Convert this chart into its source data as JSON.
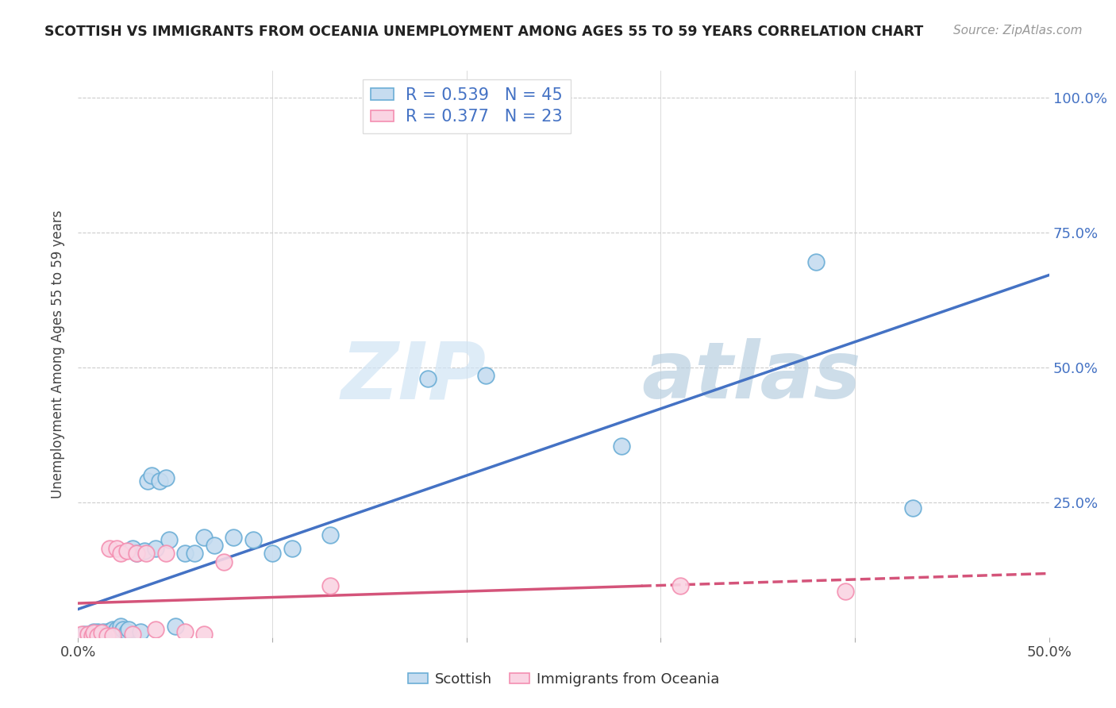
{
  "title": "SCOTTISH VS IMMIGRANTS FROM OCEANIA UNEMPLOYMENT AMONG AGES 55 TO 59 YEARS CORRELATION CHART",
  "source": "Source: ZipAtlas.com",
  "ylabel": "Unemployment Among Ages 55 to 59 years",
  "xlim": [
    0.0,
    0.5
  ],
  "ylim": [
    0.0,
    1.05
  ],
  "xticks": [
    0.0,
    0.1,
    0.2,
    0.3,
    0.4,
    0.5
  ],
  "xticklabels": [
    "0.0%",
    "",
    "",
    "",
    "",
    "50.0%"
  ],
  "ytick_positions": [
    0.0,
    0.25,
    0.5,
    0.75,
    1.0
  ],
  "yticklabels": [
    "",
    "25.0%",
    "50.0%",
    "75.0%",
    "100.0%"
  ],
  "watermark_zip": "ZIP",
  "watermark_atlas": "atlas",
  "scottish_color": "#6baed6",
  "scottish_color_fill": "#c6dcf0",
  "oceania_color": "#f48fb1",
  "oceania_color_fill": "#fad4e3",
  "trend_scottish_color": "#4472c4",
  "trend_oceania_color": "#d4547a",
  "R_scottish": 0.539,
  "N_scottish": 45,
  "R_oceania": 0.377,
  "N_oceania": 23,
  "scottish_x": [
    0.003,
    0.005,
    0.007,
    0.008,
    0.01,
    0.01,
    0.012,
    0.013,
    0.015,
    0.016,
    0.017,
    0.018,
    0.019,
    0.02,
    0.02,
    0.021,
    0.022,
    0.023,
    0.025,
    0.026,
    0.028,
    0.03,
    0.032,
    0.034,
    0.036,
    0.038,
    0.04,
    0.042,
    0.045,
    0.047,
    0.05,
    0.055,
    0.06,
    0.065,
    0.07,
    0.08,
    0.09,
    0.1,
    0.11,
    0.13,
    0.18,
    0.21,
    0.28,
    0.38,
    0.43
  ],
  "scottish_y": [
    0.005,
    0.005,
    0.005,
    0.01,
    0.005,
    0.01,
    0.008,
    0.01,
    0.005,
    0.012,
    0.01,
    0.015,
    0.008,
    0.005,
    0.015,
    0.01,
    0.02,
    0.015,
    0.01,
    0.015,
    0.165,
    0.155,
    0.01,
    0.16,
    0.29,
    0.3,
    0.165,
    0.29,
    0.295,
    0.18,
    0.02,
    0.155,
    0.155,
    0.185,
    0.17,
    0.185,
    0.18,
    0.155,
    0.165,
    0.19,
    0.48,
    0.485,
    0.355,
    0.695,
    0.24
  ],
  "oceania_x": [
    0.002,
    0.005,
    0.007,
    0.008,
    0.01,
    0.012,
    0.015,
    0.016,
    0.018,
    0.02,
    0.022,
    0.025,
    0.028,
    0.03,
    0.035,
    0.04,
    0.045,
    0.055,
    0.065,
    0.075,
    0.13,
    0.31,
    0.395
  ],
  "oceania_y": [
    0.005,
    0.005,
    0.003,
    0.008,
    0.003,
    0.008,
    0.003,
    0.165,
    0.003,
    0.165,
    0.155,
    0.16,
    0.005,
    0.155,
    0.155,
    0.015,
    0.155,
    0.01,
    0.005,
    0.14,
    0.095,
    0.095,
    0.085
  ],
  "background_color": "#ffffff",
  "grid_color": "#cccccc"
}
